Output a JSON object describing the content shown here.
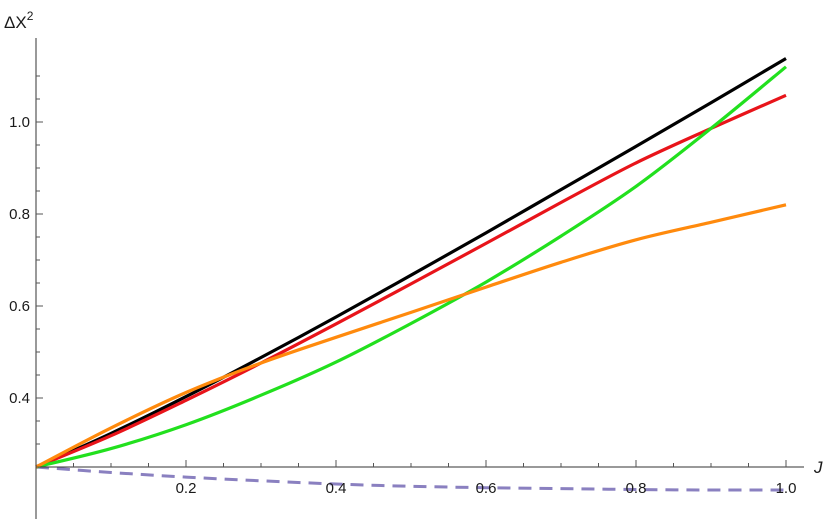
{
  "chart_data": {
    "type": "line",
    "title": "",
    "xlabel": "J",
    "ylabel_base": "ΔX",
    "ylabel_sup": "2",
    "xlim": [
      0,
      1.0
    ],
    "ylim": [
      0.2,
      1.15
    ],
    "x_axis_crosses_y_at": 0.25,
    "x_ticks": [
      0.2,
      0.4,
      0.6,
      0.8,
      1.0
    ],
    "x_tick_labels": [
      "0.2",
      "0.4",
      "0.6",
      "0.8",
      "1.0"
    ],
    "y_ticks": [
      0.4,
      0.6,
      0.8,
      1.0
    ],
    "y_tick_labels": [
      "0.4",
      "0.6",
      "0.8",
      "1.0"
    ],
    "grid": false,
    "legend": "none",
    "series": [
      {
        "color": "#000000",
        "style": "solid",
        "x": [
          0,
          0.1,
          0.2,
          0.3,
          0.4,
          0.5,
          0.6,
          0.7,
          0.8,
          0.9,
          1.0
        ],
        "y": [
          0.25,
          0.323,
          0.403,
          0.488,
          0.576,
          0.667,
          0.759,
          0.853,
          0.947,
          1.042,
          1.138
        ]
      },
      {
        "color": "#e8141a",
        "style": "solid",
        "x": [
          0,
          0.1,
          0.2,
          0.3,
          0.4,
          0.5,
          0.6,
          0.7,
          0.8,
          0.9,
          1.0
        ],
        "y": [
          0.25,
          0.318,
          0.395,
          0.476,
          0.561,
          0.648,
          0.736,
          0.825,
          0.911,
          0.986,
          1.058
        ]
      },
      {
        "color": "#22e01e",
        "style": "solid",
        "x": [
          0,
          0.1,
          0.2,
          0.3,
          0.4,
          0.5,
          0.6,
          0.7,
          0.8,
          0.9,
          1.0
        ],
        "y": [
          0.25,
          0.29,
          0.342,
          0.406,
          0.478,
          0.562,
          0.652,
          0.752,
          0.86,
          0.986,
          1.12
        ]
      },
      {
        "color": "#ff8a0d",
        "style": "solid",
        "x": [
          0,
          0.1,
          0.2,
          0.3,
          0.4,
          0.5,
          0.6,
          0.7,
          0.8,
          0.9,
          1.0
        ],
        "y": [
          0.25,
          0.335,
          0.412,
          0.476,
          0.532,
          0.586,
          0.641,
          0.695,
          0.744,
          0.782,
          0.82
        ]
      },
      {
        "color": "#8a80c0",
        "style": "dashed",
        "x": [
          0,
          0.1,
          0.2,
          0.3,
          0.4,
          0.5,
          0.6,
          0.7,
          0.8,
          0.9,
          1.0
        ],
        "y": [
          0.25,
          0.238,
          0.228,
          0.22,
          0.213,
          0.208,
          0.205,
          0.203,
          0.201,
          0.2,
          0.2
        ]
      }
    ]
  }
}
